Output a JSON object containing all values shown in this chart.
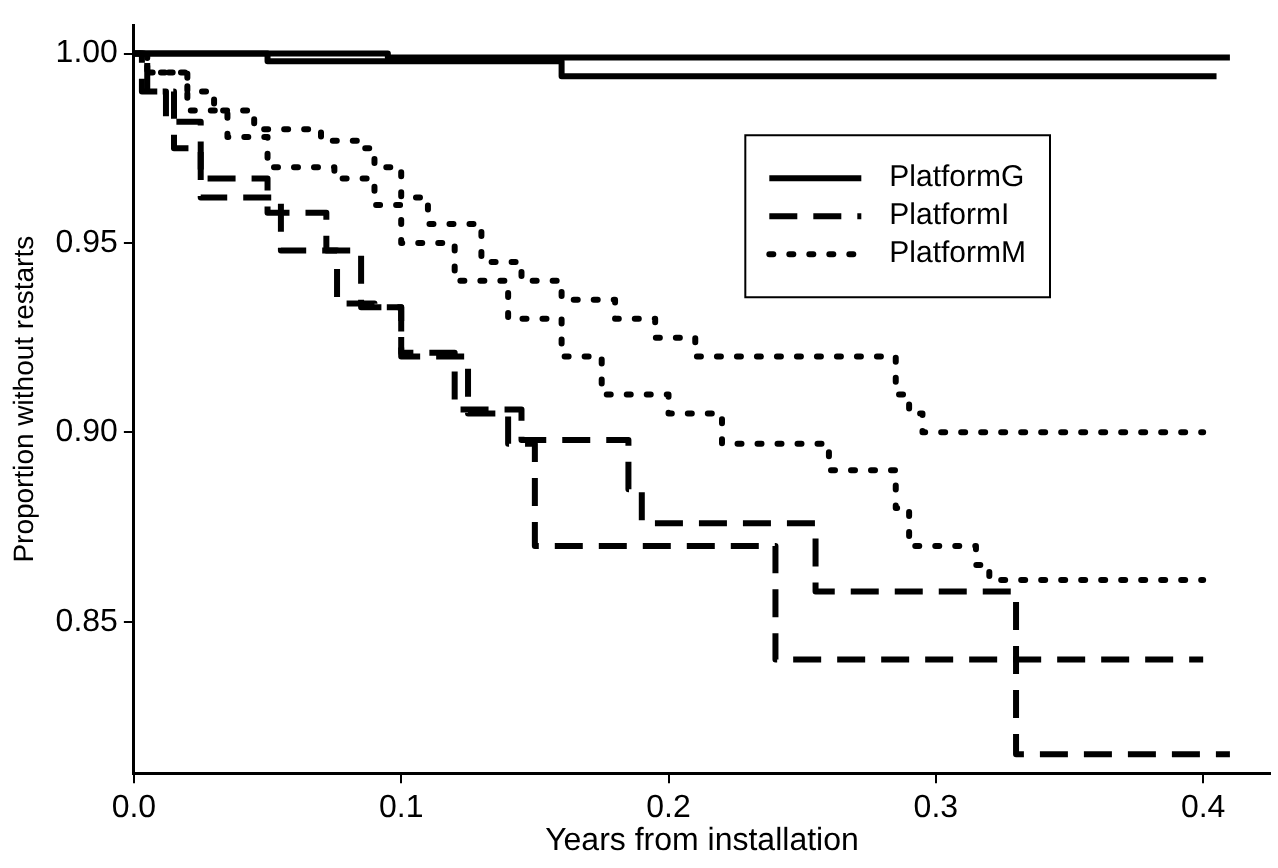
{
  "chart_data": {
    "type": "step",
    "xlabel": "Years from installation",
    "ylabel": "Proportion without restarts",
    "xlim": [
      0,
      0.425
    ],
    "xticks": [
      {
        "value": 0,
        "label": "0.0"
      },
      0.1,
      0.2,
      0.3,
      0.4
    ],
    "ylim": [
      0.81,
      1.0075
    ],
    "yticks": [
      {
        "value": 0.85,
        "label": "0.85"
      },
      {
        "value": 0.9,
        "label": "0.90"
      },
      {
        "value": 0.95,
        "label": "0.95"
      },
      {
        "value": 1,
        "label": "1.00"
      }
    ],
    "grid": false,
    "legend": "top right",
    "marker": "none",
    "series": [
      {
        "name": "PlatformG",
        "color": "#000000",
        "line_style": "solid",
        "x": [
          0,
          0.095,
          0.41
        ],
        "values": [
          1.0,
          0.999,
          0.999
        ]
      },
      {
        "name": "PlatformI",
        "color": "#000000",
        "line_style": "dashed",
        "x": [
          0,
          0.005,
          0.012,
          0.025,
          0.05,
          0.072,
          0.076,
          0.09,
          0.1,
          0.12,
          0.145,
          0.185,
          0.19,
          0.255,
          0.33,
          0.41
        ],
        "values": [
          1.0,
          0.99,
          0.982,
          0.967,
          0.958,
          0.948,
          0.934,
          0.933,
          0.921,
          0.906,
          0.898,
          0.885,
          0.876,
          0.858,
          0.815,
          0.815
        ]
      },
      {
        "name": "PlatformM",
        "color": "#000000",
        "line_style": "dotted",
        "x": [
          0,
          0.005,
          0.02,
          0.03,
          0.045,
          0.07,
          0.085,
          0.09,
          0.1,
          0.11,
          0.13,
          0.145,
          0.16,
          0.18,
          0.195,
          0.21,
          0.285,
          0.29,
          0.295,
          0.4
        ],
        "values": [
          1.0,
          0.995,
          0.99,
          0.985,
          0.98,
          0.977,
          0.975,
          0.97,
          0.962,
          0.955,
          0.945,
          0.94,
          0.935,
          0.93,
          0.925,
          0.92,
          0.91,
          0.905,
          0.9,
          0.9
        ]
      },
      {
        "color": "#000000",
        "line_style": "solid",
        "x": [
          0,
          0.05,
          0.16,
          0.405
        ],
        "values": [
          1.0,
          0.998,
          0.994,
          0.994
        ]
      },
      {
        "color": "#000000",
        "line_style": "dashed",
        "x": [
          0,
          0.003,
          0.015,
          0.025,
          0.055,
          0.085,
          0.1,
          0.125,
          0.14,
          0.15,
          0.24,
          0.4
        ],
        "values": [
          1.0,
          0.99,
          0.975,
          0.962,
          0.948,
          0.933,
          0.92,
          0.905,
          0.897,
          0.87,
          0.84,
          0.84
        ]
      },
      {
        "color": "#000000",
        "line_style": "dotted",
        "x": [
          0,
          0.005,
          0.02,
          0.035,
          0.05,
          0.075,
          0.09,
          0.1,
          0.12,
          0.14,
          0.16,
          0.175,
          0.2,
          0.22,
          0.26,
          0.285,
          0.29,
          0.315,
          0.32,
          0.4
        ],
        "values": [
          1.0,
          0.995,
          0.985,
          0.978,
          0.97,
          0.967,
          0.96,
          0.95,
          0.94,
          0.93,
          0.92,
          0.91,
          0.905,
          0.897,
          0.89,
          0.88,
          0.87,
          0.865,
          0.861,
          0.861
        ]
      }
    ]
  }
}
